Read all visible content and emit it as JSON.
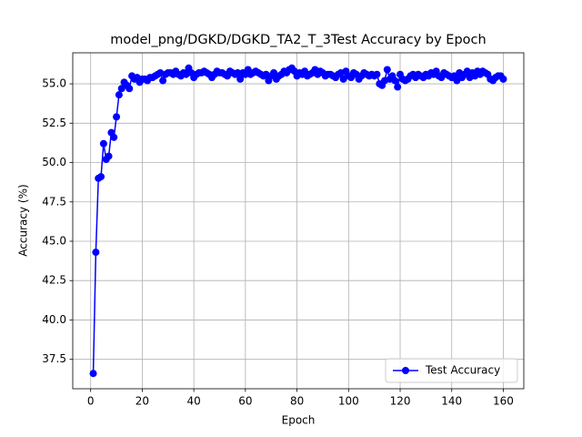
{
  "chart_data": {
    "type": "line",
    "title": "model_png/DGKD/DGKD_TA2_T_3Test Accuracy by Epoch",
    "x_label": "Epoch",
    "y_label": "Accuracy (%)",
    "x": [
      1,
      2,
      3,
      4,
      5,
      6,
      7,
      8,
      9,
      10,
      11,
      12,
      13,
      14,
      15,
      16,
      17,
      18,
      19,
      20,
      21,
      22,
      23,
      24,
      25,
      26,
      27,
      28,
      29,
      30,
      31,
      32,
      33,
      34,
      35,
      36,
      37,
      38,
      39,
      40,
      41,
      42,
      43,
      44,
      45,
      46,
      47,
      48,
      49,
      50,
      51,
      52,
      53,
      54,
      55,
      56,
      57,
      58,
      59,
      60,
      61,
      62,
      63,
      64,
      65,
      66,
      67,
      68,
      69,
      70,
      71,
      72,
      73,
      74,
      75,
      76,
      77,
      78,
      79,
      80,
      81,
      82,
      83,
      84,
      85,
      86,
      87,
      88,
      89,
      90,
      91,
      92,
      93,
      94,
      95,
      96,
      97,
      98,
      99,
      100,
      101,
      102,
      103,
      104,
      105,
      106,
      107,
      108,
      109,
      110,
      111,
      112,
      113,
      114,
      115,
      116,
      117,
      118,
      119,
      120,
      121,
      122,
      123,
      124,
      125,
      126,
      127,
      128,
      129,
      130,
      131,
      132,
      133,
      134,
      135,
      136,
      137,
      138,
      139,
      140,
      141,
      142,
      143,
      144,
      145,
      146,
      147,
      148,
      149,
      150,
      151,
      152,
      153,
      154,
      155,
      156,
      157,
      158,
      159,
      160
    ],
    "series": [
      {
        "name": "Test Accuracy",
        "color": "#0000ff",
        "values": [
          36.6,
          44.3,
          49.0,
          49.1,
          51.2,
          50.2,
          50.4,
          51.9,
          51.6,
          52.9,
          54.3,
          54.7,
          55.1,
          54.9,
          54.7,
          55.5,
          55.3,
          55.4,
          55.1,
          55.3,
          55.3,
          55.2,
          55.4,
          55.4,
          55.5,
          55.6,
          55.7,
          55.2,
          55.6,
          55.7,
          55.7,
          55.6,
          55.8,
          55.6,
          55.5,
          55.7,
          55.6,
          56.0,
          55.7,
          55.4,
          55.6,
          55.7,
          55.7,
          55.8,
          55.7,
          55.6,
          55.4,
          55.6,
          55.8,
          55.7,
          55.7,
          55.6,
          55.5,
          55.8,
          55.7,
          55.6,
          55.7,
          55.3,
          55.7,
          55.6,
          55.9,
          55.6,
          55.7,
          55.8,
          55.7,
          55.6,
          55.5,
          55.6,
          55.2,
          55.5,
          55.7,
          55.3,
          55.5,
          55.6,
          55.8,
          55.7,
          55.9,
          56.0,
          55.8,
          55.5,
          55.7,
          55.6,
          55.8,
          55.5,
          55.6,
          55.7,
          55.9,
          55.6,
          55.8,
          55.7,
          55.5,
          55.6,
          55.6,
          55.5,
          55.4,
          55.6,
          55.7,
          55.3,
          55.8,
          55.5,
          55.4,
          55.7,
          55.6,
          55.3,
          55.5,
          55.7,
          55.6,
          55.5,
          55.6,
          55.5,
          55.6,
          55.0,
          54.9,
          55.2,
          55.9,
          55.3,
          55.5,
          55.2,
          54.8,
          55.6,
          55.3,
          55.2,
          55.3,
          55.5,
          55.6,
          55.4,
          55.6,
          55.5,
          55.4,
          55.6,
          55.5,
          55.7,
          55.6,
          55.8,
          55.5,
          55.4,
          55.7,
          55.6,
          55.5,
          55.4,
          55.5,
          55.2,
          55.7,
          55.4,
          55.6,
          55.8,
          55.4,
          55.7,
          55.5,
          55.8,
          55.6,
          55.8,
          55.7,
          55.6,
          55.3,
          55.2,
          55.4,
          55.5,
          55.5,
          55.3
        ]
      }
    ],
    "xlim": [
      -6.95,
      167.95
    ],
    "xticks": [
      0,
      20,
      40,
      60,
      80,
      100,
      120,
      140,
      160
    ],
    "ylim": [
      35.63,
      56.97
    ],
    "yticks": [
      37.5,
      {
        "value": 40,
        "label": "40.0"
      },
      42.5,
      {
        "value": 45,
        "label": "45.0"
      },
      47.5,
      {
        "value": 50,
        "label": "50.0"
      },
      52.5,
      {
        "value": 55,
        "label": "55.0"
      }
    ],
    "grid": true,
    "legend": "lower right"
  }
}
